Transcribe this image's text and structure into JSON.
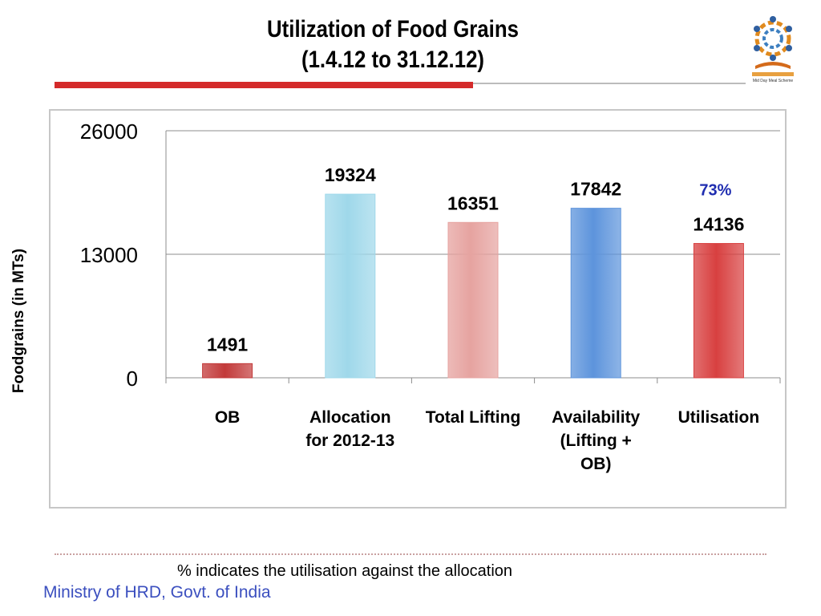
{
  "slide": {
    "title_line1": "Utilization of Food Grains",
    "title_line2": "(1.4.12 to 31.12.12)",
    "note": "% indicates the utilisation against the allocation",
    "footer": "Ministry of HRD, Govt. of India",
    "logo_text": "Mid Day Meal Scheme"
  },
  "colors": {
    "title_rule": "#d42a2a",
    "footer_text": "#3b4fbf",
    "percent_text": "#1f2db0"
  },
  "chart_data": {
    "type": "bar",
    "ylabel": "Foodgrains (in MTs)",
    "xlabel": "",
    "ylim": [
      0,
      26000
    ],
    "yticks": [
      0,
      13000,
      26000
    ],
    "grid": true,
    "categories": [
      [
        "OB"
      ],
      [
        "Allocation",
        "for 2012-13"
      ],
      [
        "Total Lifting"
      ],
      [
        "Availability",
        "(Lifting +",
        "OB)"
      ],
      [
        "Utilisation"
      ]
    ],
    "values": [
      1491,
      19324,
      16351,
      17842,
      14136
    ],
    "bar_colors": [
      "#c23a3a",
      "#9fd8ea",
      "#e6a3a0",
      "#5d94dc",
      "#d84040"
    ],
    "annotations": [
      {
        "category_index": 4,
        "text": "73%",
        "color": "#1f2db0"
      }
    ]
  }
}
